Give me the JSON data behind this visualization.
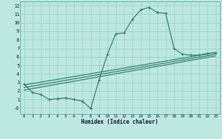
{
  "xlabel": "Humidex (Indice chaleur)",
  "bg_color": "#bde8e2",
  "line_color": "#2d7d6e",
  "grid_color": "#9dd0c8",
  "xlim": [
    -0.5,
    23.5
  ],
  "ylim": [
    -0.7,
    12.5
  ],
  "xticks": [
    0,
    1,
    2,
    3,
    4,
    5,
    6,
    7,
    8,
    9,
    10,
    11,
    12,
    13,
    14,
    15,
    16,
    17,
    18,
    19,
    20,
    21,
    22,
    23
  ],
  "yticks": [
    0,
    1,
    2,
    3,
    4,
    5,
    6,
    7,
    8,
    9,
    10,
    11,
    12
  ],
  "ytick_labels": [
    "-0",
    "1",
    "2",
    "3",
    "4",
    "5",
    "6",
    "7",
    "8",
    "9",
    "10",
    "11",
    "12"
  ],
  "line1_x": [
    0,
    1,
    2,
    3,
    4,
    5,
    6,
    7,
    8,
    9,
    10,
    11,
    12,
    13,
    14,
    15,
    16,
    17,
    18,
    19,
    20,
    21,
    22,
    23
  ],
  "line1_y": [
    2.8,
    1.8,
    1.6,
    1.0,
    1.1,
    1.2,
    1.0,
    0.8,
    -0.05,
    3.3,
    6.3,
    8.7,
    8.8,
    10.4,
    11.5,
    11.8,
    11.2,
    11.1,
    7.0,
    6.3,
    6.2,
    6.2,
    6.4,
    6.5
  ],
  "line2_x": [
    0,
    23
  ],
  "line2_y": [
    2.7,
    6.5
  ],
  "line3_x": [
    0,
    23
  ],
  "line3_y": [
    2.4,
    6.3
  ],
  "line4_x": [
    0,
    23
  ],
  "line4_y": [
    2.1,
    6.1
  ]
}
